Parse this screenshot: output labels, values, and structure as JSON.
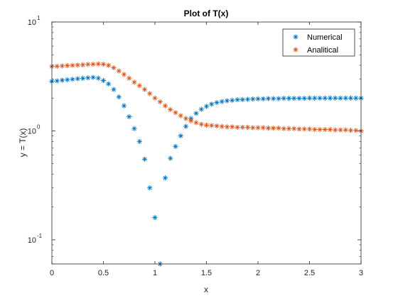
{
  "chart_data": {
    "type": "scatter",
    "title": "Plot of T(x)",
    "xlabel": "x",
    "ylabel": "y = T(x)",
    "xlim": [
      0,
      3
    ],
    "ylim": [
      0.06,
      10
    ],
    "yscale": "log",
    "grid": false,
    "legend_position": "top-right",
    "x_ticks": [
      0,
      0.5,
      1,
      1.5,
      2,
      2.5,
      3
    ],
    "x_tick_labels": [
      "0",
      "0.5",
      "1",
      "1.5",
      "2",
      "2.5",
      "3"
    ],
    "y_ticks": [
      0.1,
      1,
      10
    ],
    "y_tick_labels": [
      {
        "base": "10",
        "exp": "-1"
      },
      {
        "base": "10",
        "exp": "0"
      },
      {
        "base": "10",
        "exp": "1"
      }
    ],
    "series": [
      {
        "name": "Numerical",
        "color": "#0072BD",
        "marker": "asterisk",
        "x": [
          0,
          0.05,
          0.1,
          0.15,
          0.2,
          0.25,
          0.3,
          0.35,
          0.4,
          0.45,
          0.5,
          0.55,
          0.6,
          0.65,
          0.7,
          0.75,
          0.8,
          0.85,
          0.9,
          0.95,
          1.0,
          1.05,
          1.1,
          1.15,
          1.2,
          1.25,
          1.3,
          1.35,
          1.4,
          1.45,
          1.5,
          1.55,
          1.6,
          1.65,
          1.7,
          1.75,
          1.8,
          1.85,
          1.9,
          1.95,
          2.0,
          2.05,
          2.1,
          2.15,
          2.2,
          2.25,
          2.3,
          2.35,
          2.4,
          2.45,
          2.5,
          2.55,
          2.6,
          2.65,
          2.7,
          2.75,
          2.8,
          2.85,
          2.9,
          2.95,
          3.0
        ],
        "y": [
          2.85,
          2.88,
          2.92,
          2.95,
          2.98,
          3.01,
          3.04,
          3.07,
          3.1,
          3.05,
          2.9,
          2.7,
          2.4,
          2.05,
          1.7,
          1.35,
          1.05,
          0.8,
          0.55,
          0.3,
          0.16,
          0.06,
          0.37,
          0.56,
          0.72,
          0.9,
          1.1,
          1.3,
          1.45,
          1.58,
          1.68,
          1.76,
          1.82,
          1.86,
          1.89,
          1.91,
          1.93,
          1.94,
          1.95,
          1.96,
          1.97,
          1.97,
          1.98,
          1.98,
          1.98,
          1.99,
          1.99,
          1.99,
          1.99,
          1.99,
          2.0,
          2.0,
          2.0,
          2.0,
          2.0,
          2.0,
          2.0,
          2.0,
          2.0,
          2.0,
          2.0
        ]
      },
      {
        "name": "Analitical",
        "color": "#D95319",
        "marker": "asterisk",
        "x": [
          0,
          0.05,
          0.1,
          0.15,
          0.2,
          0.25,
          0.3,
          0.35,
          0.4,
          0.45,
          0.5,
          0.55,
          0.6,
          0.65,
          0.7,
          0.75,
          0.8,
          0.85,
          0.9,
          0.95,
          1.0,
          1.05,
          1.1,
          1.15,
          1.2,
          1.25,
          1.3,
          1.35,
          1.4,
          1.45,
          1.5,
          1.55,
          1.6,
          1.65,
          1.7,
          1.75,
          1.8,
          1.85,
          1.9,
          1.95,
          2.0,
          2.05,
          2.1,
          2.15,
          2.2,
          2.25,
          2.3,
          2.35,
          2.4,
          2.45,
          2.5,
          2.55,
          2.6,
          2.65,
          2.7,
          2.75,
          2.8,
          2.85,
          2.9,
          2.95,
          3.0
        ],
        "y": [
          3.9,
          3.92,
          3.95,
          3.98,
          4.0,
          4.02,
          4.05,
          4.08,
          4.1,
          4.12,
          4.1,
          4.0,
          3.8,
          3.55,
          3.3,
          3.05,
          2.8,
          2.6,
          2.4,
          2.2,
          2.0,
          1.85,
          1.7,
          1.57,
          1.47,
          1.38,
          1.3,
          1.24,
          1.19,
          1.15,
          1.13,
          1.12,
          1.11,
          1.1,
          1.09,
          1.09,
          1.08,
          1.08,
          1.08,
          1.07,
          1.07,
          1.07,
          1.06,
          1.06,
          1.06,
          1.05,
          1.05,
          1.05,
          1.04,
          1.04,
          1.04,
          1.03,
          1.03,
          1.03,
          1.03,
          1.02,
          1.02,
          1.02,
          1.01,
          1.01,
          1.0
        ]
      }
    ]
  }
}
